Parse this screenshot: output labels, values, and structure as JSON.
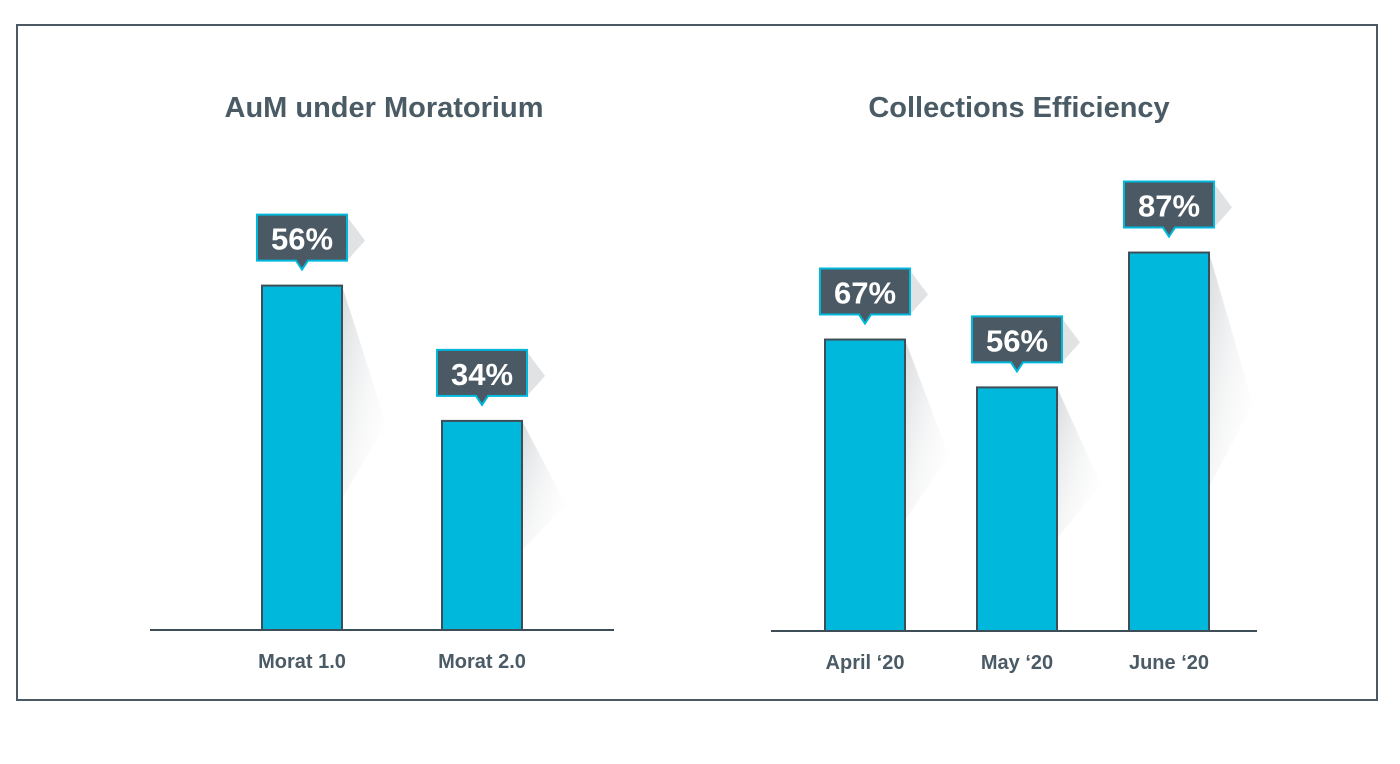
{
  "colors": {
    "bar_fill": "#00b8dc",
    "bar_stroke": "#3e4e58",
    "label_box_fill": "#4a5963",
    "label_box_stroke": "#00b8dc",
    "text": "#4b5b66",
    "axis": "#3e4e58",
    "frame": "#4a5963"
  },
  "chart_data": [
    {
      "type": "bar",
      "title": "AuM under Moratorium",
      "categories": [
        "Morat 1.0",
        "Morat 2.0"
      ],
      "values": [
        56,
        34
      ],
      "value_labels": [
        "56%",
        "34%"
      ],
      "unit": "%",
      "ylim": [
        0,
        100
      ],
      "grid": false,
      "legend": "none"
    },
    {
      "type": "bar",
      "title": "Collections Efficiency",
      "categories": [
        "April ‘20",
        "May ‘20",
        "June ‘20"
      ],
      "values": [
        67,
        56,
        87
      ],
      "value_labels": [
        "67%",
        "56%",
        "87%"
      ],
      "unit": "%",
      "ylim": [
        0,
        100
      ],
      "grid": false,
      "legend": "none"
    }
  ]
}
